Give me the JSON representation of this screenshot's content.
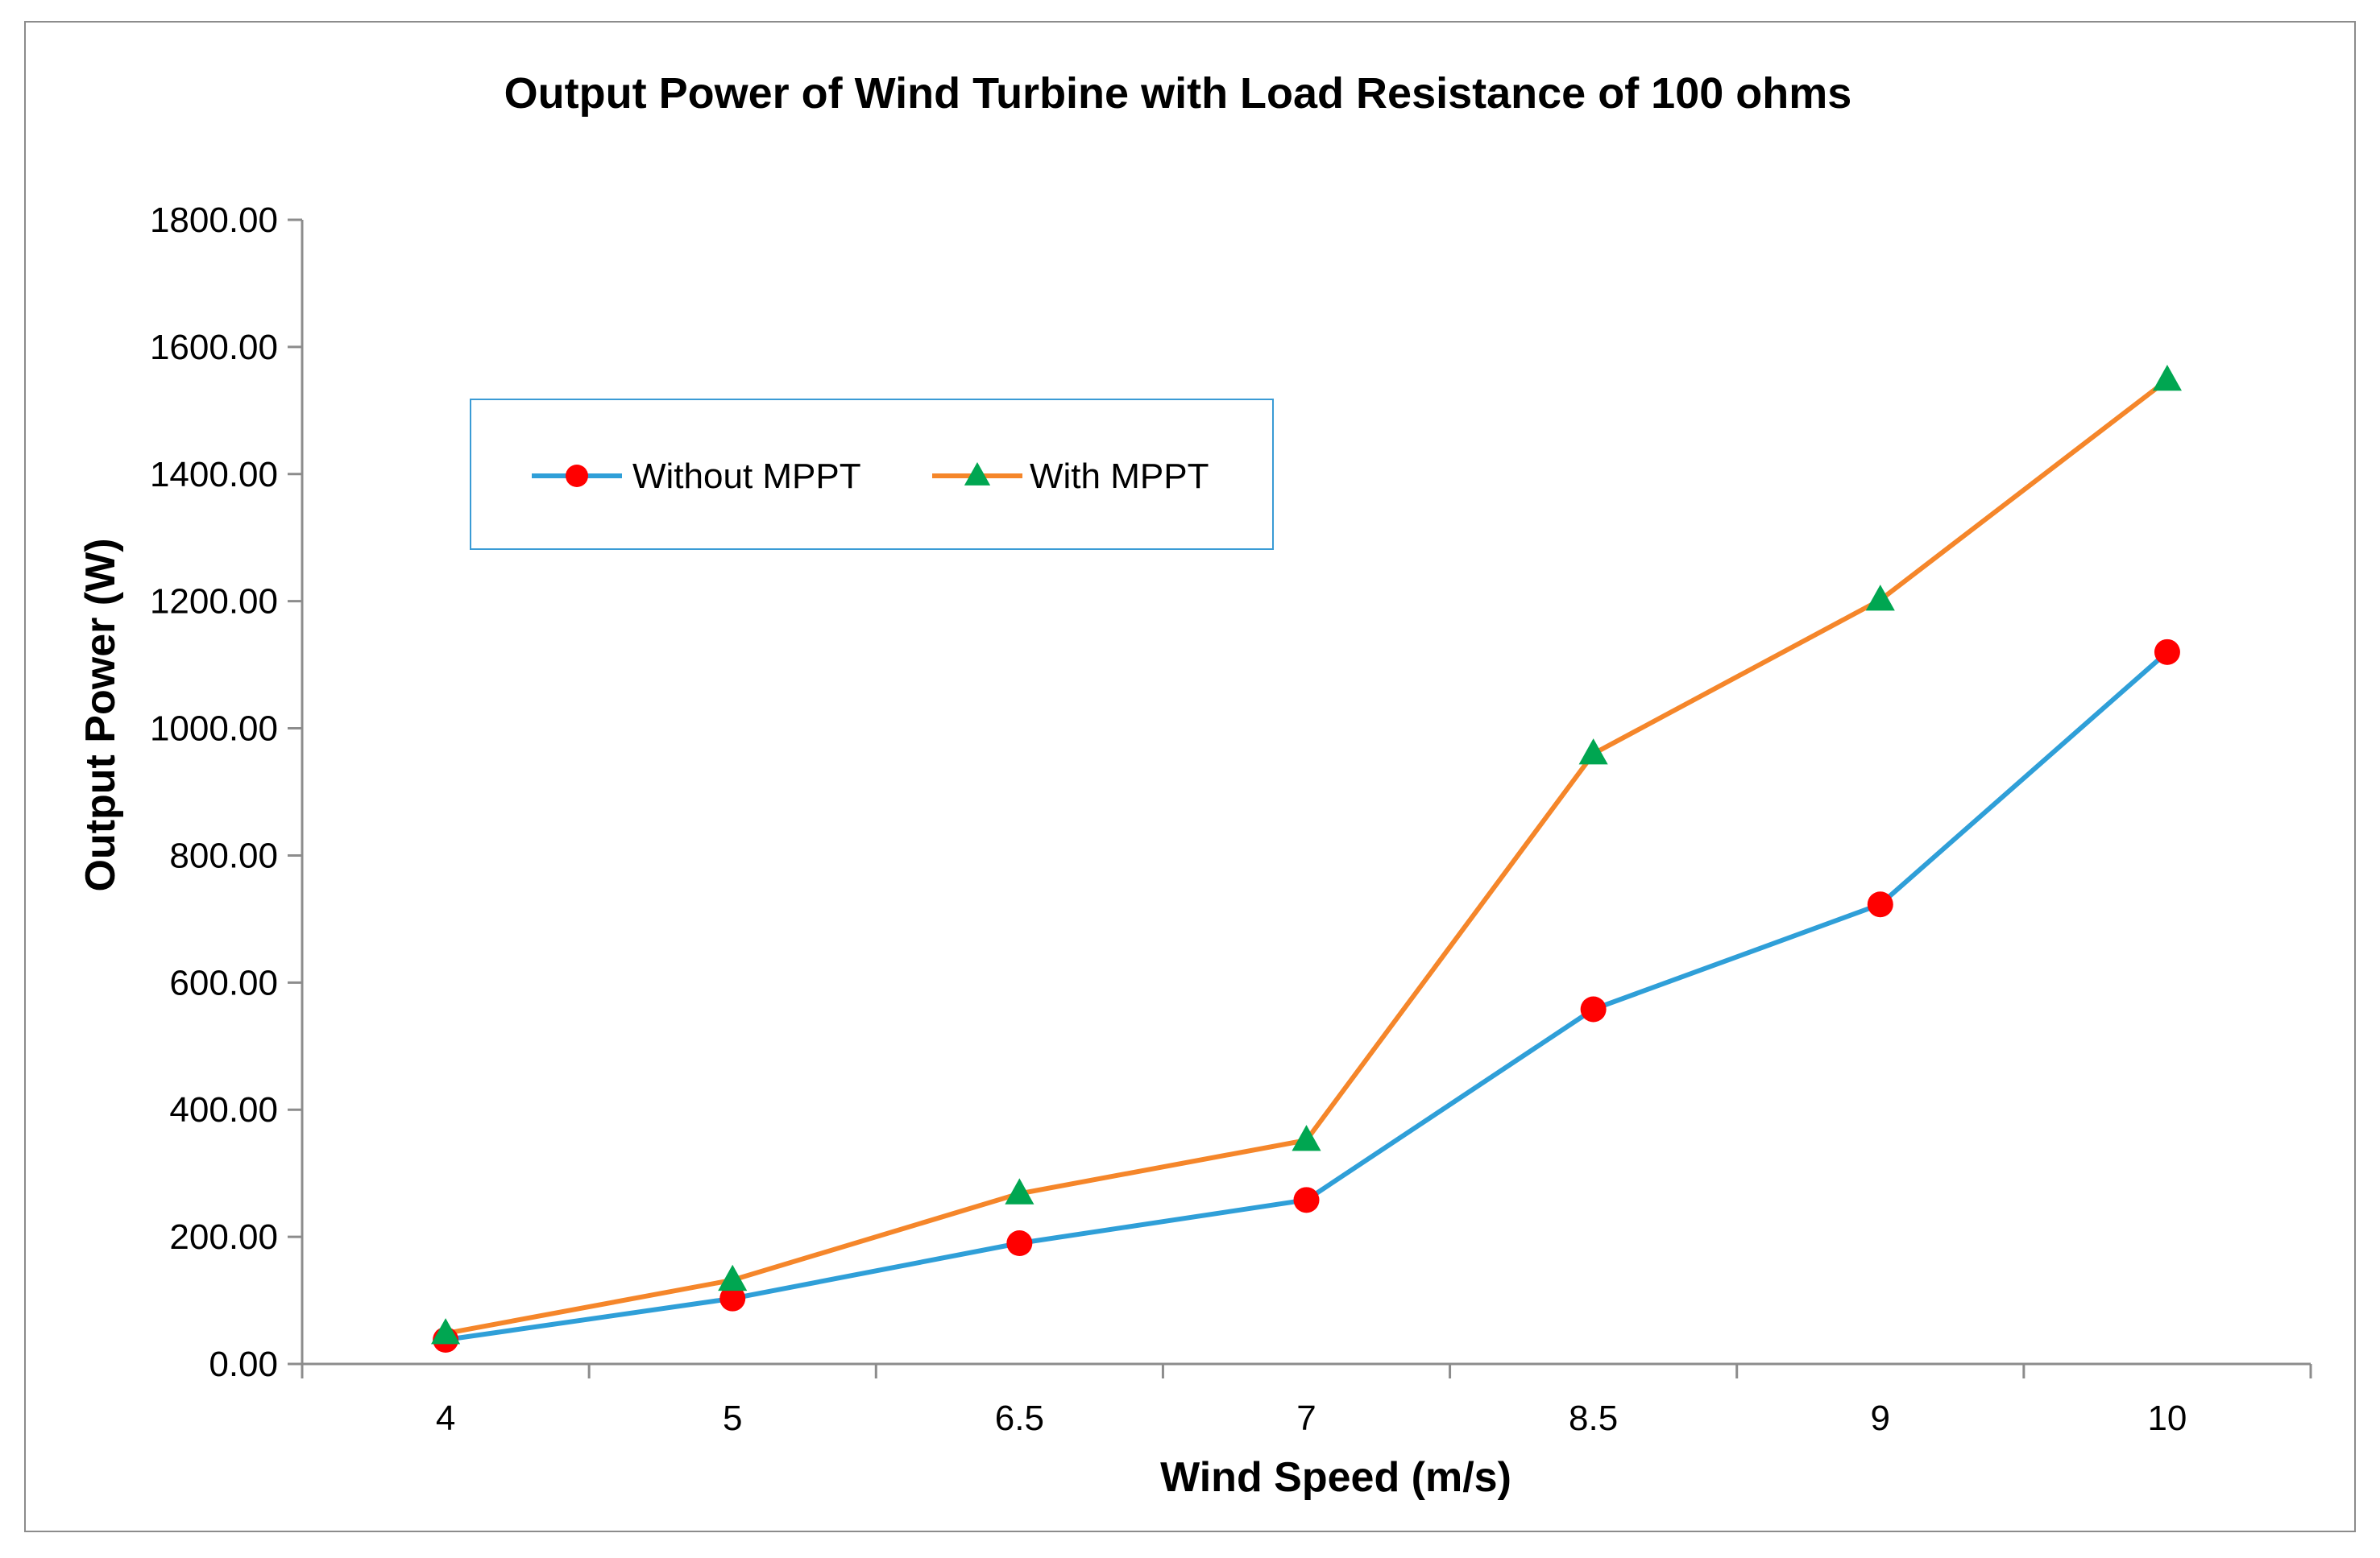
{
  "chart_data": {
    "type": "line",
    "title": "Output Power of Wind Turbine with Load Resistance of 100 ohms",
    "xlabel": "Wind Speed (m/s)",
    "ylabel": "Output Power (W)",
    "categories": [
      "4",
      "5",
      "6.5",
      "7",
      "8.5",
      "9",
      "10"
    ],
    "ylim": [
      0,
      1800
    ],
    "yticks": [
      "0.00",
      "200.00",
      "400.00",
      "600.00",
      "800.00",
      "1000.00",
      "1200.00",
      "1400.00",
      "1600.00",
      "1800.00"
    ],
    "grid": false,
    "legend_position": "upper-left",
    "series": [
      {
        "name": "Without MPPT",
        "values": [
          38,
          103,
          190,
          258,
          558,
          723,
          1120
        ],
        "line_color": "#2f9fd8",
        "marker": "circle",
        "marker_color": "#ff0000"
      },
      {
        "name": "With MPPT",
        "values": [
          48,
          132,
          268,
          352,
          960,
          1202,
          1548
        ],
        "line_color": "#f5862a",
        "marker": "triangle",
        "marker_color": "#00a651"
      }
    ]
  },
  "colors": {
    "axis": "#8c8c8c",
    "frame": "#8c8c8c",
    "legend_border": "#3a9bd5"
  }
}
